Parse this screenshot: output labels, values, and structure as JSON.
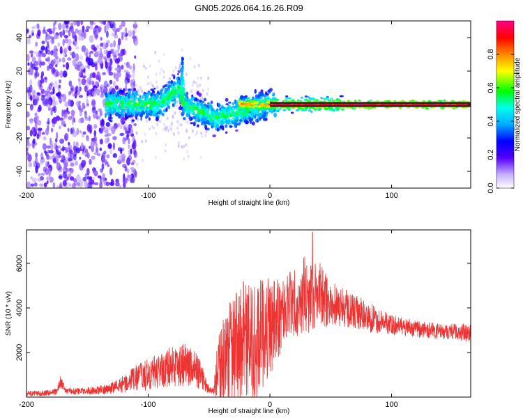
{
  "title": "GN05.2026.064.16.26.R09",
  "colors": {
    "snr_line": "#ee3333",
    "axis": "#000000",
    "signal_core": "#222222"
  },
  "chart_data": [
    {
      "type": "heatmap",
      "name": "spectrogram",
      "xlabel": "Height of straight line (km)",
      "ylabel": "Frequency (Hz)",
      "xlim": [
        -200,
        165
      ],
      "ylim": [
        -50,
        50
      ],
      "x_ticks": [
        -200,
        -100,
        0,
        100
      ],
      "x_tick_labels": [
        "-200",
        "-100",
        "0",
        "100"
      ],
      "y_ticks": [
        -40,
        -20,
        0,
        20,
        40
      ],
      "y_tick_labels": [
        "-40",
        "-20",
        "0",
        "20",
        "40"
      ],
      "colorbar": {
        "label": "Normalized spectral amplitude",
        "range": [
          0,
          1
        ],
        "ticks": [
          0.0,
          0.2,
          0.4,
          0.6,
          0.8
        ],
        "tick_labels": [
          "0.0",
          "0.2",
          "0.4",
          "0.6",
          "0.8"
        ],
        "colormap": "rainbow-white-to-magenta"
      },
      "features": {
        "noise_region_km": [
          -200,
          -120
        ],
        "spike_center_km": -72,
        "spike_peak_hz": 28,
        "steady_line_start_km": 0,
        "steady_line_hz": 0
      }
    },
    {
      "type": "line",
      "name": "snr",
      "xlabel": "Height of straight line (km)",
      "ylabel": "SNR (10 * v/v)",
      "xlim": [
        -200,
        165
      ],
      "ylim": [
        0,
        7500
      ],
      "x_ticks": [
        -200,
        -100,
        0,
        100
      ],
      "x_tick_labels": [
        "-200",
        "-100",
        "0",
        "100"
      ],
      "y_ticks": [
        2000,
        4000,
        6000
      ],
      "y_tick_labels": [
        "2000",
        "4000",
        "6000"
      ],
      "envelope": {
        "x": [
          -200,
          -185,
          -175,
          -172,
          -168,
          -160,
          -150,
          -140,
          -130,
          -120,
          -110,
          -100,
          -90,
          -80,
          -70,
          -60,
          -55,
          -50,
          -46,
          -44,
          -40,
          -35,
          -30,
          -25,
          -20,
          -15,
          -10,
          -5,
          0,
          5,
          10,
          15,
          20,
          25,
          30,
          35,
          40,
          45,
          50,
          60,
          70,
          80,
          90,
          100,
          110,
          120,
          130,
          140,
          150,
          160,
          165
        ],
        "base": [
          150,
          180,
          250,
          700,
          300,
          250,
          280,
          300,
          400,
          600,
          850,
          1000,
          1200,
          1400,
          1500,
          1200,
          800,
          300,
          250,
          1000,
          1500,
          1900,
          2200,
          2400,
          2700,
          2300,
          2500,
          3000,
          3200,
          3400,
          3800,
          4100,
          4300,
          4400,
          4600,
          4700,
          4600,
          4400,
          4200,
          4000,
          3800,
          3600,
          3400,
          3250,
          3150,
          3050,
          3000,
          2950,
          2950,
          2900,
          2800
        ],
        "amp": [
          120,
          120,
          150,
          250,
          150,
          150,
          150,
          200,
          250,
          400,
          600,
          700,
          800,
          900,
          1000,
          800,
          500,
          150,
          150,
          1200,
          1800,
          2200,
          2400,
          2500,
          2700,
          2600,
          2600,
          2500,
          2200,
          1900,
          1700,
          1600,
          1500,
          1700,
          1800,
          1700,
          1500,
          1300,
          1100,
          900,
          800,
          700,
          550,
          450,
          400,
          380,
          350,
          350,
          350,
          400,
          450
        ]
      },
      "peak": {
        "x": 35,
        "y": 7400
      }
    }
  ]
}
